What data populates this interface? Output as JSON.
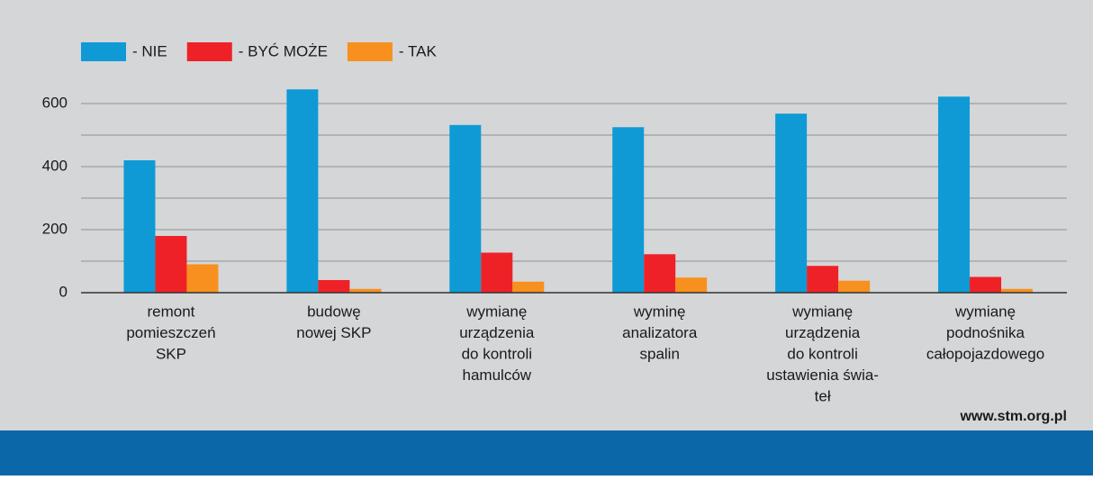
{
  "chart_data": {
    "type": "bar",
    "categories": [
      [
        "remont",
        "pomieszczeń",
        "SKP"
      ],
      [
        "budowę",
        "nowej SKP"
      ],
      [
        "wymianę",
        "urządzenia",
        "do kontroli",
        "hamulców"
      ],
      [
        "wyminę",
        "analizatora",
        "spalin"
      ],
      [
        "wymianę",
        "urządzenia",
        "do kontroli",
        "ustawienia świa-",
        "teł"
      ],
      [
        "wymianę",
        "podnośnika",
        "całopojazdowego"
      ]
    ],
    "series": [
      {
        "name": "- NIE",
        "color": "#0f9ad6",
        "values": [
          420,
          645,
          532,
          525,
          568,
          622
        ]
      },
      {
        "name": "- BYĆ MOŻE",
        "color": "#ee2126",
        "values": [
          180,
          40,
          127,
          122,
          85,
          50
        ]
      },
      {
        "name": "- TAK",
        "color": "#f7901e",
        "values": [
          90,
          12,
          35,
          48,
          38,
          12
        ]
      }
    ],
    "ylim": [
      0,
      700
    ],
    "yticks": [
      0,
      200,
      400,
      600
    ],
    "grid_lines": [
      100,
      200,
      300,
      400,
      500,
      600
    ],
    "grid": true,
    "legend": "top-left",
    "source": "www.stm.org.pl"
  }
}
